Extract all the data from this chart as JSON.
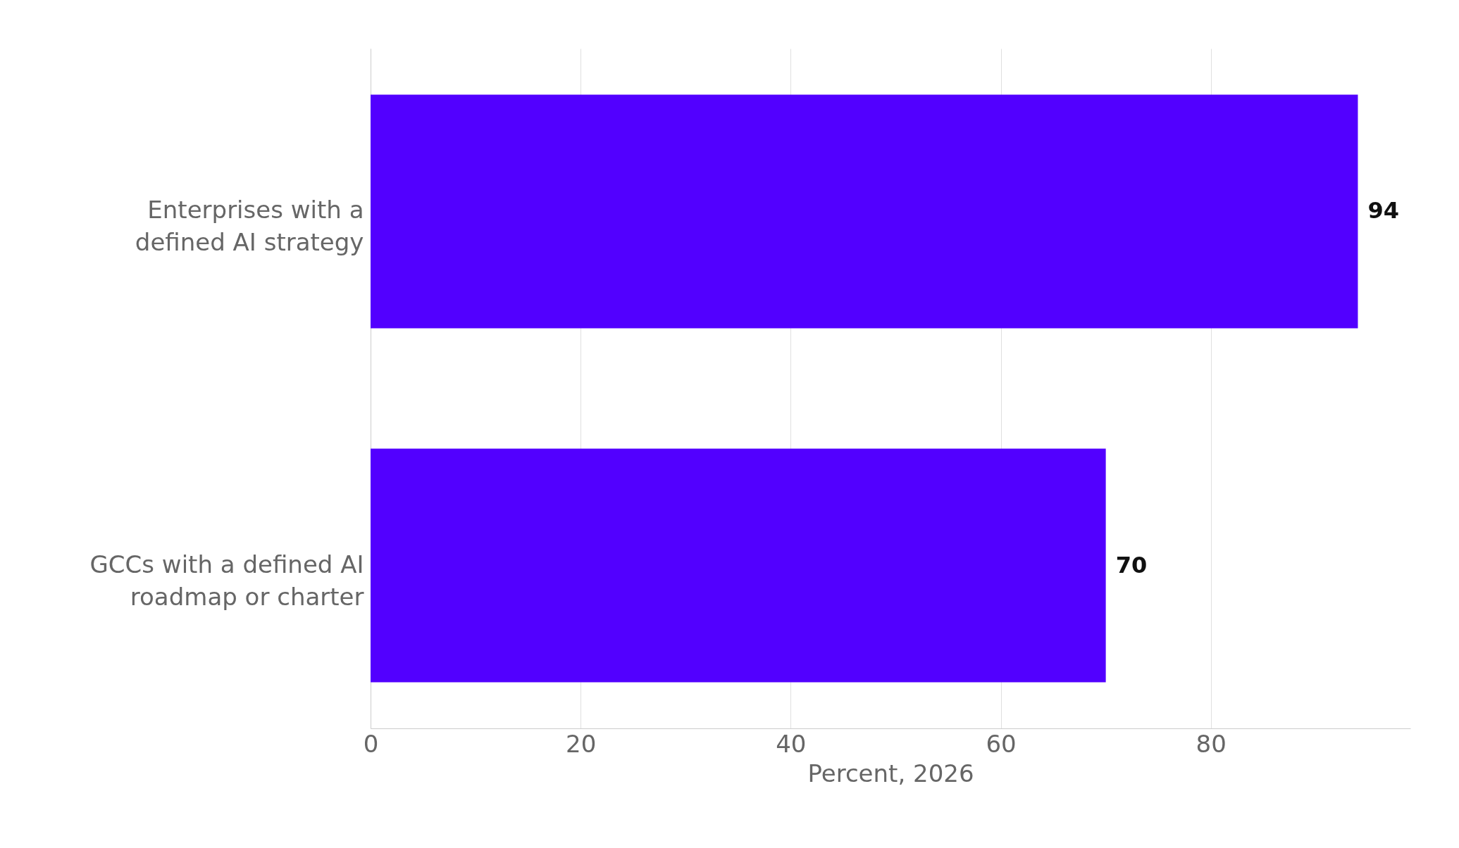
{
  "chart_data": {
    "type": "bar",
    "orientation": "horizontal",
    "xlabel": "Percent, 2026",
    "categories": [
      "Enterprises with a defined AI strategy",
      "GCCs with a defined AI roadmap or charter"
    ],
    "values": [
      94,
      70
    ],
    "color": "#5200ff",
    "xlim": [
      0,
      99
    ],
    "xticks": [
      0,
      20,
      40,
      60,
      80
    ],
    "grid": "x",
    "data_labels": true
  }
}
